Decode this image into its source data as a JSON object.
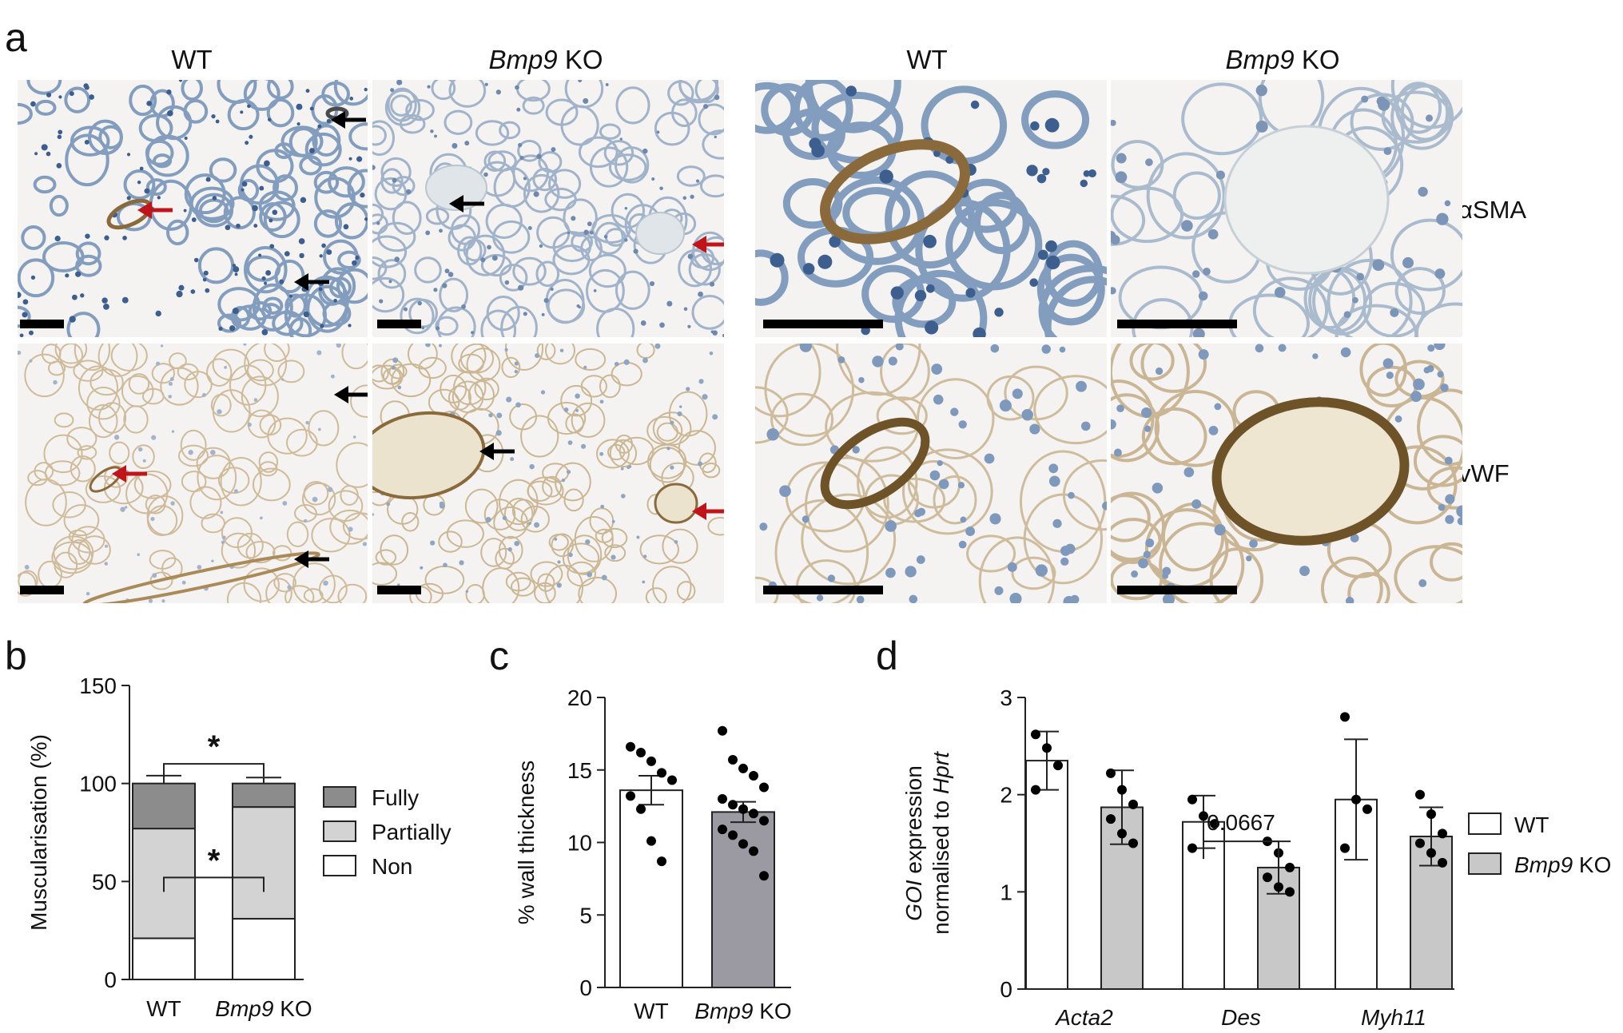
{
  "panels": {
    "a": "a",
    "b": "b",
    "c": "c",
    "d": "d"
  },
  "panel_a": {
    "groups": [
      {
        "wt": "WT",
        "ko_gene": "Bmp9",
        "ko_suffix": " KO"
      },
      {
        "wt": "WT",
        "ko_gene": "Bmp9",
        "ko_suffix": " KO"
      }
    ],
    "row_labels": [
      "αSMA",
      "vWF"
    ],
    "colors": {
      "hematoxylin": "#6f8fb5",
      "dab": "#8a6a3b",
      "background": "#f4f3f1",
      "arrow_black": "#000000",
      "arrow_red": "#c0141a"
    }
  },
  "chart_data": [
    {
      "id": "b",
      "type": "bar",
      "stacked": true,
      "ylabel": "Muscularisation (%)",
      "ylim": [
        0,
        150
      ],
      "yticks": [
        0,
        50,
        100,
        150
      ],
      "categories": [
        {
          "text": "WT",
          "italic": "",
          "suffix": ""
        },
        {
          "text": "",
          "italic": "Bmp9",
          "suffix": " KO"
        }
      ],
      "series": [
        {
          "name": "Non",
          "values": [
            21,
            31
          ],
          "errors": [
            4,
            4
          ],
          "color": "#ffffff"
        },
        {
          "name": "Partially",
          "values": [
            56,
            57
          ],
          "errors": [
            2,
            2
          ],
          "color": "#d3d3d3"
        },
        {
          "name": "Fully",
          "values": [
            23,
            12
          ],
          "errors": [
            4,
            3
          ],
          "color": "#8c8c8c"
        }
      ],
      "legend_order": [
        "Fully",
        "Partially",
        "Non"
      ],
      "legend_position": "right",
      "significance": [
        "*",
        "*"
      ]
    },
    {
      "id": "c",
      "type": "bar",
      "ylabel": "% wall thickness",
      "ylim": [
        0,
        20
      ],
      "yticks": [
        0,
        5,
        10,
        15,
        20
      ],
      "categories": [
        {
          "text": "WT",
          "italic": "",
          "suffix": ""
        },
        {
          "text": "",
          "italic": "Bmp9",
          "suffix": " KO"
        }
      ],
      "values": [
        13.6,
        12.1
      ],
      "errors": [
        1.0,
        0.7
      ],
      "colors": [
        "#ffffff",
        "#9b9aa3"
      ],
      "points": [
        [
          16.6,
          16.2,
          15.6,
          14.8,
          14.3,
          13.2,
          12.3,
          10.1,
          8.7
        ],
        [
          17.7,
          15.7,
          15.1,
          14.6,
          13.8,
          13.0,
          12.6,
          12.3,
          12.0,
          11.5,
          10.9,
          10.5,
          9.9,
          9.4,
          7.7
        ]
      ]
    },
    {
      "id": "d",
      "type": "bar",
      "ylabel_parts": [
        {
          "text": "GOI",
          "italic": true
        },
        {
          "text": " expression",
          "italic": false
        },
        {
          "text": "normalised to ",
          "italic": false
        },
        {
          "text": "Hprt",
          "italic": true
        }
      ],
      "ylim": [
        0,
        3
      ],
      "yticks": [
        0,
        1,
        2,
        3
      ],
      "categories": [
        "Acta2",
        "Des",
        "Myh11"
      ],
      "series": [
        {
          "name": "WT",
          "name_italic": "",
          "values": [
            2.35,
            1.72,
            1.95
          ],
          "errors": [
            0.3,
            0.27,
            0.62
          ],
          "color": "#ffffff",
          "points": [
            [
              2.62,
              2.48,
              2.3,
              2.05
            ],
            [
              1.95,
              1.78,
              1.7,
              1.45
            ],
            [
              2.8,
              1.95,
              1.85,
              1.45
            ]
          ]
        },
        {
          "name": " KO",
          "name_italic": "Bmp9",
          "values": [
            1.87,
            1.25,
            1.57
          ],
          "errors": [
            0.38,
            0.27,
            0.3
          ],
          "color": "#c8c8c8",
          "points": [
            [
              2.22,
              2.05,
              1.9,
              1.75,
              1.6,
              1.5
            ],
            [
              1.52,
              1.4,
              1.25,
              1.15,
              1.05,
              1.0
            ],
            [
              2.0,
              1.8,
              1.6,
              1.5,
              1.4,
              1.3
            ]
          ]
        }
      ],
      "annotation": "0.0667",
      "legend_position": "right"
    }
  ]
}
